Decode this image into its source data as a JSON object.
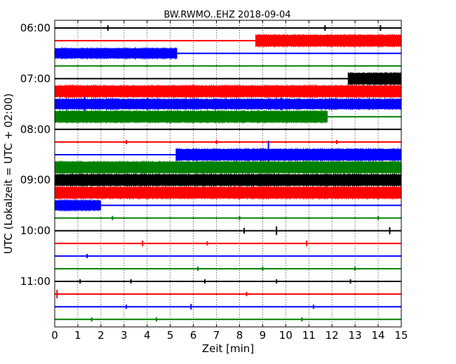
{
  "chart_data": {
    "type": "line",
    "title": "BW.RWMO..EHZ 2018-09-04",
    "xlabel": "Zeit  [min]",
    "ylabel": "UTC (Lokalzeit = UTC + 02:00)",
    "xlim": [
      0,
      15
    ],
    "x_ticks": [
      "0",
      "1",
      "2",
      "3",
      "4",
      "5",
      "6",
      "7",
      "8",
      "9",
      "10",
      "11",
      "12",
      "13",
      "14",
      "15"
    ],
    "y_tick_labels": [
      {
        "label": "06:00",
        "trace": 0
      },
      {
        "label": "07:00",
        "trace": 4
      },
      {
        "label": "08:00",
        "trace": 8
      },
      {
        "label": "09:00",
        "trace": 12
      },
      {
        "label": "10:00",
        "trace": 16
      },
      {
        "label": "11:00",
        "trace": 20
      }
    ],
    "grid": "vertical dotted lines at each minute",
    "trace_interval_min": 15,
    "colors": [
      "#000000",
      "#ff0000",
      "#0000ff",
      "#008000"
    ],
    "traces": [
      {
        "start": "06:00",
        "color": "#000000",
        "segments": [
          [
            0,
            15,
            1
          ]
        ],
        "spikes": [
          [
            2.3,
            4
          ],
          [
            11.7,
            4
          ],
          [
            14.1,
            4
          ]
        ]
      },
      {
        "start": "06:15",
        "color": "#ff0000",
        "segments": [
          [
            0,
            8.7,
            1
          ],
          [
            8.7,
            15,
            8
          ]
        ],
        "spikes": []
      },
      {
        "start": "06:30",
        "color": "#0000ff",
        "segments": [
          [
            0,
            5.3,
            7
          ],
          [
            5.3,
            15,
            1
          ]
        ],
        "spikes": []
      },
      {
        "start": "06:45",
        "color": "#008000",
        "segments": [
          [
            0,
            15,
            1
          ]
        ],
        "spikes": []
      },
      {
        "start": "07:00",
        "color": "#000000",
        "segments": [
          [
            0,
            12.7,
            1
          ],
          [
            12.7,
            15,
            8
          ]
        ],
        "spikes": []
      },
      {
        "start": "07:15",
        "color": "#ff0000",
        "segments": [
          [
            0,
            15,
            8
          ]
        ],
        "spikes": []
      },
      {
        "start": "07:30",
        "color": "#0000ff",
        "segments": [
          [
            0,
            15,
            7
          ]
        ],
        "spikes": [
          [
            1.3,
            10
          ],
          [
            4.0,
            9
          ],
          [
            9.8,
            9
          ]
        ]
      },
      {
        "start": "07:45",
        "color": "#008000",
        "segments": [
          [
            0,
            11.8,
            8
          ],
          [
            11.8,
            15,
            1
          ]
        ],
        "spikes": []
      },
      {
        "start": "08:00",
        "color": "#000000",
        "segments": [
          [
            0,
            15,
            1
          ]
        ],
        "spikes": []
      },
      {
        "start": "08:15",
        "color": "#ff0000",
        "segments": [
          [
            0,
            15,
            1
          ]
        ],
        "spikes": [
          [
            3.1,
            3
          ],
          [
            7.0,
            3
          ],
          [
            12.2,
            3
          ]
        ]
      },
      {
        "start": "08:30",
        "color": "#0000ff",
        "segments": [
          [
            0,
            5.25,
            1
          ],
          [
            5.25,
            15,
            8
          ]
        ],
        "spikes": [
          [
            9.25,
            20
          ]
        ]
      },
      {
        "start": "08:45",
        "color": "#008000",
        "segments": [
          [
            0,
            15,
            8
          ]
        ],
        "spikes": []
      },
      {
        "start": "09:00",
        "color": "#000000",
        "segments": [
          [
            0,
            15,
            8
          ]
        ],
        "spikes": []
      },
      {
        "start": "09:15",
        "color": "#ff0000",
        "segments": [
          [
            0,
            15,
            8
          ]
        ],
        "spikes": []
      },
      {
        "start": "09:30",
        "color": "#0000ff",
        "segments": [
          [
            0,
            2.0,
            7
          ],
          [
            2.0,
            15,
            1
          ]
        ],
        "spikes": []
      },
      {
        "start": "09:45",
        "color": "#008000",
        "segments": [
          [
            0,
            15,
            1
          ]
        ],
        "spikes": [
          [
            2.5,
            3
          ],
          [
            8.0,
            3
          ],
          [
            14.0,
            3
          ]
        ]
      },
      {
        "start": "10:00",
        "color": "#000000",
        "segments": [
          [
            0,
            15,
            1
          ]
        ],
        "spikes": [
          [
            8.2,
            4
          ],
          [
            9.6,
            6
          ],
          [
            14.5,
            5
          ]
        ]
      },
      {
        "start": "10:15",
        "color": "#ff0000",
        "segments": [
          [
            0,
            15,
            1
          ]
        ],
        "spikes": [
          [
            3.8,
            4
          ],
          [
            10.9,
            4
          ],
          [
            6.6,
            3
          ]
        ]
      },
      {
        "start": "10:30",
        "color": "#0000ff",
        "segments": [
          [
            0,
            15,
            1
          ]
        ],
        "spikes": [
          [
            1.4,
            3
          ]
        ]
      },
      {
        "start": "10:45",
        "color": "#008000",
        "segments": [
          [
            0,
            15,
            1
          ]
        ],
        "spikes": [
          [
            6.2,
            3
          ],
          [
            9.0,
            3
          ],
          [
            13.0,
            3
          ]
        ]
      },
      {
        "start": "11:00",
        "color": "#000000",
        "segments": [
          [
            0,
            15,
            1
          ]
        ],
        "spikes": [
          [
            1.1,
            3
          ],
          [
            3.3,
            3
          ],
          [
            6.5,
            3
          ],
          [
            9.6,
            3
          ],
          [
            12.8,
            3
          ]
        ]
      },
      {
        "start": "11:15",
        "color": "#ff0000",
        "segments": [
          [
            0,
            15,
            1
          ]
        ],
        "spikes": [
          [
            0.1,
            6
          ],
          [
            8.3,
            3
          ]
        ]
      },
      {
        "start": "11:30",
        "color": "#0000ff",
        "segments": [
          [
            0,
            15,
            1
          ]
        ],
        "spikes": [
          [
            5.9,
            4
          ],
          [
            3.1,
            3
          ],
          [
            11.2,
            3
          ]
        ]
      },
      {
        "start": "11:45",
        "color": "#008000",
        "segments": [
          [
            0,
            15,
            1
          ]
        ],
        "spikes": [
          [
            1.6,
            3
          ],
          [
            4.4,
            3
          ],
          [
            10.7,
            3
          ]
        ]
      }
    ]
  }
}
